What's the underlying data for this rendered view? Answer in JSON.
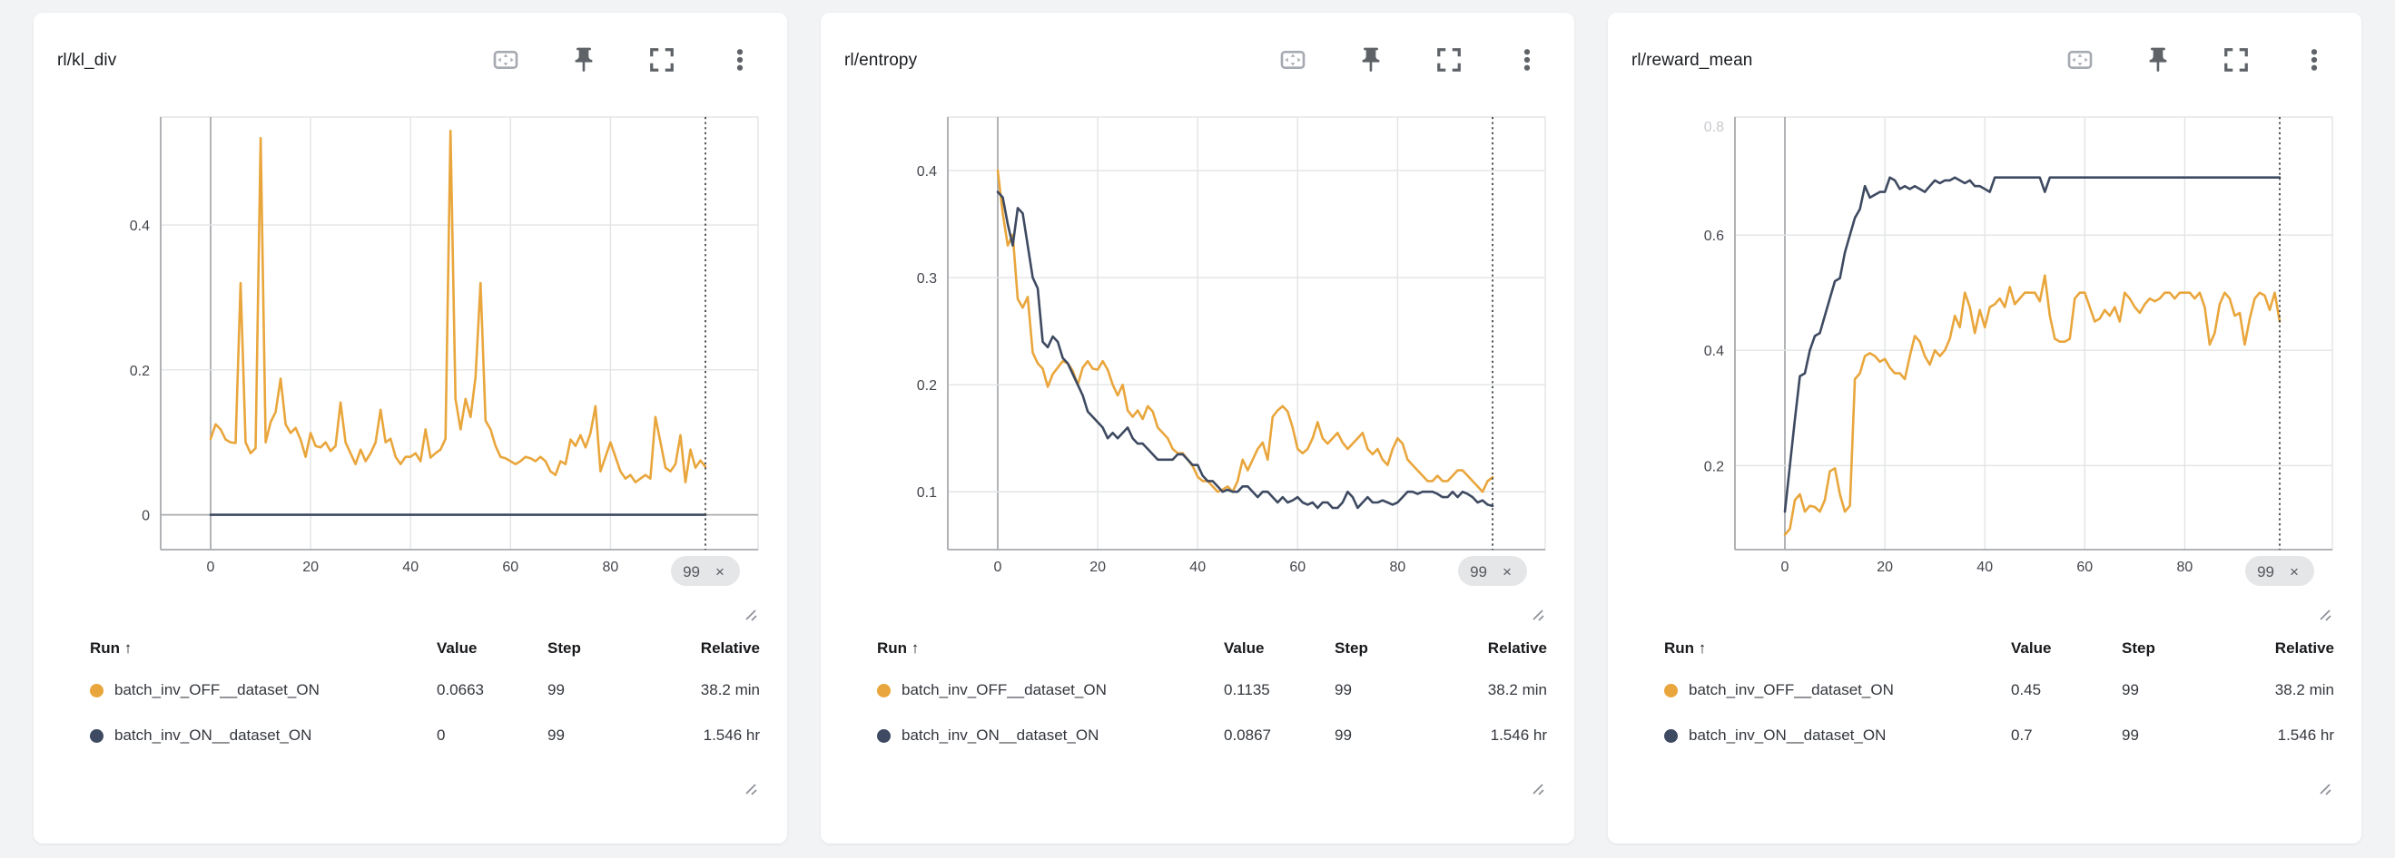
{
  "colors": {
    "orange": "#E9A63C",
    "navy": "#3E4A61",
    "grid_light": "#e3e4e6",
    "grid_dark": "#a9abae",
    "cursor_line": "#3f4146",
    "badge_bg": "#e5e6e8",
    "card_bg": "#ffffff",
    "page_bg": "#f2f3f5"
  },
  "toolbar_icon_names": [
    "pan-view-icon",
    "pin-icon",
    "fullscreen-icon",
    "kebab-menu-icon"
  ],
  "legend_headers": [
    "Run ↑",
    "Value",
    "Step",
    "Relative"
  ],
  "chart_data": [
    {
      "type": "line",
      "title": "rl/kl_div",
      "xlabel": "",
      "ylabel": "",
      "x_max": 99,
      "xticks": [
        0,
        20,
        40,
        60,
        80
      ],
      "ylim": [
        -0.048,
        0.549
      ],
      "yticks": [
        {
          "v": 0,
          "label": "0"
        },
        {
          "v": 0.2,
          "label": "0.2"
        },
        {
          "v": 0.4,
          "label": "0.4"
        }
      ],
      "grid": true,
      "cursor": {
        "step_label": "99",
        "close_label": "×"
      },
      "series": [
        {
          "name": "batch_inv_OFF__dataset_ON",
          "color": "#E9A63C",
          "values": [
            0.105,
            0.125,
            0.118,
            0.104,
            0.1,
            0.099,
            0.32,
            0.1,
            0.085,
            0.092,
            0.52,
            0.1,
            0.128,
            0.142,
            0.188,
            0.125,
            0.113,
            0.12,
            0.104,
            0.08,
            0.113,
            0.095,
            0.093,
            0.1,
            0.088,
            0.095,
            0.155,
            0.1,
            0.085,
            0.07,
            0.09,
            0.074,
            0.085,
            0.1,
            0.145,
            0.1,
            0.105,
            0.08,
            0.07,
            0.08,
            0.08,
            0.085,
            0.074,
            0.118,
            0.079,
            0.085,
            0.09,
            0.105,
            0.53,
            0.16,
            0.118,
            0.16,
            0.135,
            0.19,
            0.32,
            0.13,
            0.118,
            0.095,
            0.08,
            0.078,
            0.074,
            0.07,
            0.074,
            0.08,
            0.078,
            0.074,
            0.08,
            0.074,
            0.06,
            0.055,
            0.074,
            0.07,
            0.104,
            0.095,
            0.11,
            0.093,
            0.113,
            0.15,
            0.06,
            0.08,
            0.1,
            0.08,
            0.06,
            0.05,
            0.055,
            0.045,
            0.05,
            0.055,
            0.05,
            0.135,
            0.1,
            0.065,
            0.06,
            0.07,
            0.11,
            0.045,
            0.09,
            0.065,
            0.075,
            0.0663
          ]
        },
        {
          "name": "batch_inv_ON__dataset_ON",
          "color": "#3E4A61",
          "values": [
            0,
            0,
            0,
            0,
            0,
            0,
            0,
            0,
            0,
            0,
            0,
            0,
            0,
            0,
            0,
            0,
            0,
            0,
            0,
            0,
            0,
            0,
            0,
            0,
            0,
            0,
            0,
            0,
            0,
            0,
            0,
            0,
            0,
            0,
            0,
            0,
            0,
            0,
            0,
            0,
            0,
            0,
            0,
            0,
            0,
            0,
            0,
            0,
            0,
            0,
            0,
            0,
            0,
            0,
            0,
            0,
            0,
            0,
            0,
            0,
            0,
            0,
            0,
            0,
            0,
            0,
            0,
            0,
            0,
            0,
            0,
            0,
            0,
            0,
            0,
            0,
            0,
            0,
            0,
            0,
            0,
            0,
            0,
            0,
            0,
            0,
            0,
            0,
            0,
            0,
            0,
            0,
            0,
            0,
            0,
            0,
            0,
            0,
            0,
            0
          ]
        }
      ],
      "legend": {
        "rows": [
          {
            "run": "batch_inv_OFF__dataset_ON",
            "color": "#E9A63C",
            "value": "0.0663",
            "step": "99",
            "relative": "38.2 min"
          },
          {
            "run": "batch_inv_ON__dataset_ON",
            "color": "#3E4A61",
            "value": "0",
            "step": "99",
            "relative": "1.546 hr"
          }
        ]
      }
    },
    {
      "type": "line",
      "title": "rl/entropy",
      "xlabel": "",
      "ylabel": "",
      "x_max": 99,
      "xticks": [
        0,
        20,
        40,
        60,
        80
      ],
      "ylim": [
        0.046,
        0.45
      ],
      "yticks": [
        {
          "v": 0.1,
          "label": "0.1"
        },
        {
          "v": 0.2,
          "label": "0.2"
        },
        {
          "v": 0.3,
          "label": "0.3"
        },
        {
          "v": 0.4,
          "label": "0.4"
        }
      ],
      "grid": true,
      "cursor": {
        "step_label": "99",
        "close_label": "×"
      },
      "series": [
        {
          "name": "batch_inv_OFF__dataset_ON",
          "color": "#E9A63C",
          "values": [
            0.4,
            0.36,
            0.33,
            0.34,
            0.28,
            0.272,
            0.282,
            0.23,
            0.22,
            0.215,
            0.198,
            0.21,
            0.216,
            0.222,
            0.22,
            0.213,
            0.2,
            0.216,
            0.222,
            0.215,
            0.214,
            0.222,
            0.214,
            0.2,
            0.19,
            0.2,
            0.176,
            0.17,
            0.176,
            0.168,
            0.18,
            0.175,
            0.16,
            0.155,
            0.15,
            0.14,
            0.136,
            0.136,
            0.13,
            0.124,
            0.114,
            0.11,
            0.11,
            0.105,
            0.1,
            0.102,
            0.105,
            0.1,
            0.11,
            0.13,
            0.12,
            0.13,
            0.14,
            0.146,
            0.13,
            0.17,
            0.176,
            0.18,
            0.175,
            0.16,
            0.14,
            0.136,
            0.14,
            0.15,
            0.165,
            0.15,
            0.145,
            0.15,
            0.155,
            0.146,
            0.14,
            0.145,
            0.15,
            0.155,
            0.14,
            0.135,
            0.14,
            0.13,
            0.125,
            0.14,
            0.15,
            0.145,
            0.13,
            0.125,
            0.12,
            0.115,
            0.11,
            0.11,
            0.115,
            0.11,
            0.11,
            0.115,
            0.12,
            0.12,
            0.115,
            0.11,
            0.105,
            0.1,
            0.11,
            0.1135
          ]
        },
        {
          "name": "batch_inv_ON__dataset_ON",
          "color": "#3E4A61",
          "values": [
            0.38,
            0.375,
            0.35,
            0.33,
            0.365,
            0.36,
            0.33,
            0.3,
            0.29,
            0.24,
            0.235,
            0.245,
            0.24,
            0.225,
            0.22,
            0.21,
            0.2,
            0.19,
            0.175,
            0.17,
            0.165,
            0.16,
            0.15,
            0.155,
            0.15,
            0.155,
            0.16,
            0.15,
            0.145,
            0.145,
            0.14,
            0.135,
            0.13,
            0.13,
            0.13,
            0.13,
            0.135,
            0.135,
            0.13,
            0.125,
            0.125,
            0.115,
            0.11,
            0.11,
            0.105,
            0.1,
            0.102,
            0.1,
            0.1,
            0.105,
            0.105,
            0.1,
            0.095,
            0.1,
            0.1,
            0.095,
            0.09,
            0.095,
            0.09,
            0.092,
            0.095,
            0.09,
            0.088,
            0.09,
            0.085,
            0.09,
            0.09,
            0.085,
            0.085,
            0.09,
            0.1,
            0.095,
            0.085,
            0.09,
            0.095,
            0.09,
            0.09,
            0.092,
            0.09,
            0.088,
            0.09,
            0.095,
            0.1,
            0.1,
            0.098,
            0.1,
            0.1,
            0.1,
            0.098,
            0.095,
            0.095,
            0.1,
            0.095,
            0.1,
            0.098,
            0.095,
            0.09,
            0.092,
            0.088,
            0.0867
          ]
        }
      ],
      "legend": {
        "rows": [
          {
            "run": "batch_inv_OFF__dataset_ON",
            "color": "#E9A63C",
            "value": "0.1135",
            "step": "99",
            "relative": "38.2 min"
          },
          {
            "run": "batch_inv_ON__dataset_ON",
            "color": "#3E4A61",
            "value": "0.0867",
            "step": "99",
            "relative": "1.546 hr"
          }
        ]
      }
    },
    {
      "type": "line",
      "title": "rl/reward_mean",
      "xlabel": "",
      "ylabel": "",
      "x_max": 99,
      "xticks": [
        0,
        20,
        40,
        60,
        80
      ],
      "ylim": [
        0.054,
        0.805
      ],
      "yticks": [
        {
          "v": 0.2,
          "label": "0.2"
        },
        {
          "v": 0.4,
          "label": "0.4"
        },
        {
          "v": 0.6,
          "label": "0.6"
        },
        {
          "v": 0.8,
          "label": "0.8",
          "faded": true
        }
      ],
      "grid": true,
      "cursor": {
        "step_label": "99",
        "close_label": "×"
      },
      "series": [
        {
          "name": "batch_inv_OFF__dataset_ON",
          "color": "#E9A63C",
          "values": [
            0.08,
            0.09,
            0.14,
            0.15,
            0.12,
            0.13,
            0.128,
            0.12,
            0.14,
            0.19,
            0.195,
            0.15,
            0.12,
            0.13,
            0.35,
            0.36,
            0.39,
            0.395,
            0.39,
            0.38,
            0.385,
            0.37,
            0.36,
            0.36,
            0.35,
            0.39,
            0.425,
            0.415,
            0.39,
            0.375,
            0.4,
            0.39,
            0.4,
            0.42,
            0.46,
            0.44,
            0.5,
            0.475,
            0.43,
            0.47,
            0.44,
            0.475,
            0.48,
            0.49,
            0.475,
            0.51,
            0.48,
            0.49,
            0.5,
            0.5,
            0.5,
            0.485,
            0.53,
            0.46,
            0.42,
            0.415,
            0.415,
            0.42,
            0.49,
            0.5,
            0.5,
            0.475,
            0.45,
            0.455,
            0.47,
            0.46,
            0.475,
            0.45,
            0.5,
            0.49,
            0.475,
            0.465,
            0.48,
            0.49,
            0.485,
            0.49,
            0.5,
            0.5,
            0.49,
            0.5,
            0.5,
            0.5,
            0.49,
            0.5,
            0.475,
            0.41,
            0.43,
            0.48,
            0.5,
            0.49,
            0.46,
            0.465,
            0.41,
            0.455,
            0.49,
            0.5,
            0.495,
            0.47,
            0.5,
            0.45
          ]
        },
        {
          "name": "batch_inv_ON__dataset_ON",
          "color": "#3E4A61",
          "values": [
            0.12,
            0.2,
            0.28,
            0.355,
            0.36,
            0.4,
            0.425,
            0.43,
            0.46,
            0.49,
            0.52,
            0.525,
            0.57,
            0.6,
            0.63,
            0.645,
            0.685,
            0.665,
            0.67,
            0.675,
            0.675,
            0.7,
            0.695,
            0.68,
            0.685,
            0.68,
            0.685,
            0.68,
            0.675,
            0.685,
            0.695,
            0.69,
            0.695,
            0.695,
            0.7,
            0.695,
            0.69,
            0.695,
            0.685,
            0.685,
            0.68,
            0.675,
            0.7,
            0.7,
            0.7,
            0.7,
            0.7,
            0.7,
            0.7,
            0.7,
            0.7,
            0.7,
            0.675,
            0.7,
            0.7,
            0.7,
            0.7,
            0.7,
            0.7,
            0.7,
            0.7,
            0.7,
            0.7,
            0.7,
            0.7,
            0.7,
            0.7,
            0.7,
            0.7,
            0.7,
            0.7,
            0.7,
            0.7,
            0.7,
            0.7,
            0.7,
            0.7,
            0.7,
            0.7,
            0.7,
            0.7,
            0.7,
            0.7,
            0.7,
            0.7,
            0.7,
            0.7,
            0.7,
            0.7,
            0.7,
            0.7,
            0.7,
            0.7,
            0.7,
            0.7,
            0.7,
            0.7,
            0.7,
            0.7,
            0.7
          ]
        }
      ],
      "legend": {
        "rows": [
          {
            "run": "batch_inv_OFF__dataset_ON",
            "color": "#E9A63C",
            "value": "0.45",
            "step": "99",
            "relative": "38.2 min"
          },
          {
            "run": "batch_inv_ON__dataset_ON",
            "color": "#3E4A61",
            "value": "0.7",
            "step": "99",
            "relative": "1.546 hr"
          }
        ]
      }
    }
  ]
}
